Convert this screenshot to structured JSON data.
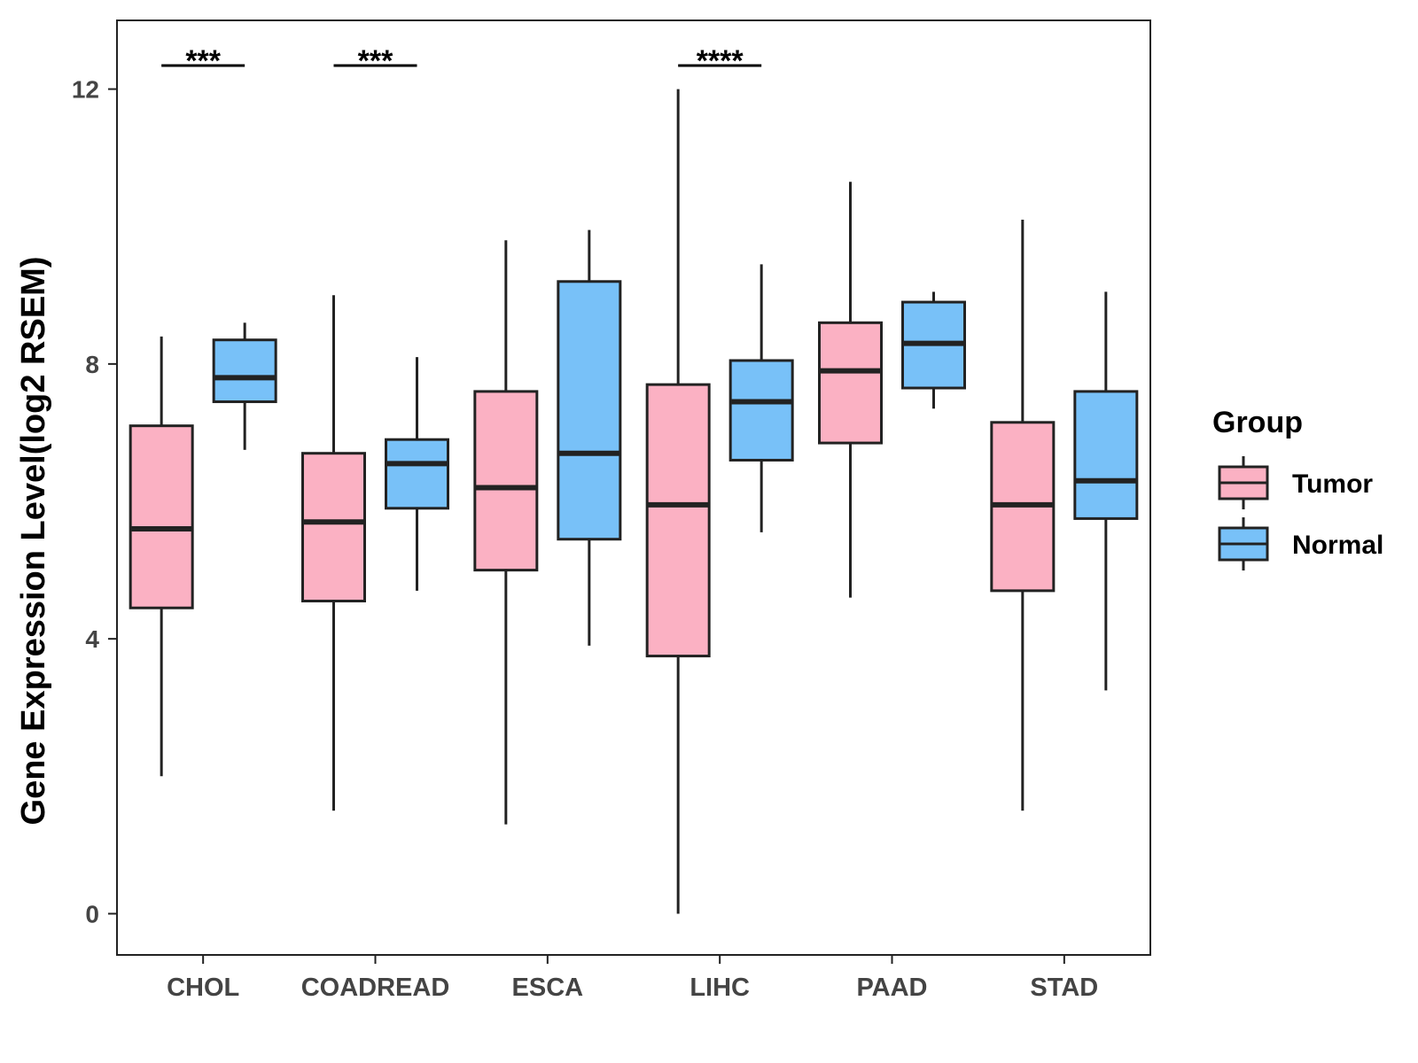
{
  "chart_data": {
    "type": "boxplot",
    "ylabel": "Gene Expression Level(log2 RSEM)",
    "xlabel": "",
    "ylim": [
      -0.6,
      13.0
    ],
    "yticks": [
      0,
      4,
      8,
      12
    ],
    "grid": false,
    "categories": [
      "CHOL",
      "COADREAD",
      "ESCA",
      "LIHC",
      "PAAD",
      "STAD"
    ],
    "legend": {
      "title": "Group",
      "position": "right",
      "entries": [
        {
          "name": "Tumor",
          "color": "#FBB1C3"
        },
        {
          "name": "Normal",
          "color": "#78C1F8"
        }
      ]
    },
    "series": [
      {
        "name": "Tumor",
        "color": "#FBB1C3",
        "boxes": [
          {
            "min": 2.0,
            "q1": 4.45,
            "median": 5.6,
            "q3": 7.1,
            "max": 8.4
          },
          {
            "min": 1.5,
            "q1": 4.55,
            "median": 5.7,
            "q3": 6.7,
            "max": 9.0
          },
          {
            "min": 1.3,
            "q1": 5.0,
            "median": 6.2,
            "q3": 7.6,
            "max": 9.8
          },
          {
            "min": 0.0,
            "q1": 3.75,
            "median": 5.95,
            "q3": 7.7,
            "max": 12.0
          },
          {
            "min": 4.6,
            "q1": 6.85,
            "median": 7.9,
            "q3": 8.6,
            "max": 10.65
          },
          {
            "min": 1.5,
            "q1": 4.7,
            "median": 5.95,
            "q3": 7.15,
            "max": 10.1
          }
        ]
      },
      {
        "name": "Normal",
        "color": "#78C1F8",
        "boxes": [
          {
            "min": 6.75,
            "q1": 7.45,
            "median": 7.8,
            "q3": 8.35,
            "max": 8.6
          },
          {
            "min": 4.7,
            "q1": 5.9,
            "median": 6.55,
            "q3": 6.9,
            "max": 8.1
          },
          {
            "min": 3.9,
            "q1": 5.45,
            "median": 6.7,
            "q3": 9.2,
            "max": 9.95
          },
          {
            "min": 5.55,
            "q1": 6.6,
            "median": 7.45,
            "q3": 8.05,
            "max": 9.45
          },
          {
            "min": 7.35,
            "q1": 7.65,
            "median": 8.3,
            "q3": 8.9,
            "max": 9.05
          },
          {
            "min": 3.25,
            "q1": 5.75,
            "median": 6.3,
            "q3": 7.6,
            "max": 9.05
          }
        ]
      }
    ],
    "annotations": [
      {
        "category": "CHOL",
        "label": "***"
      },
      {
        "category": "COADREAD",
        "label": "***"
      },
      {
        "category": "LIHC",
        "label": "****"
      }
    ]
  }
}
